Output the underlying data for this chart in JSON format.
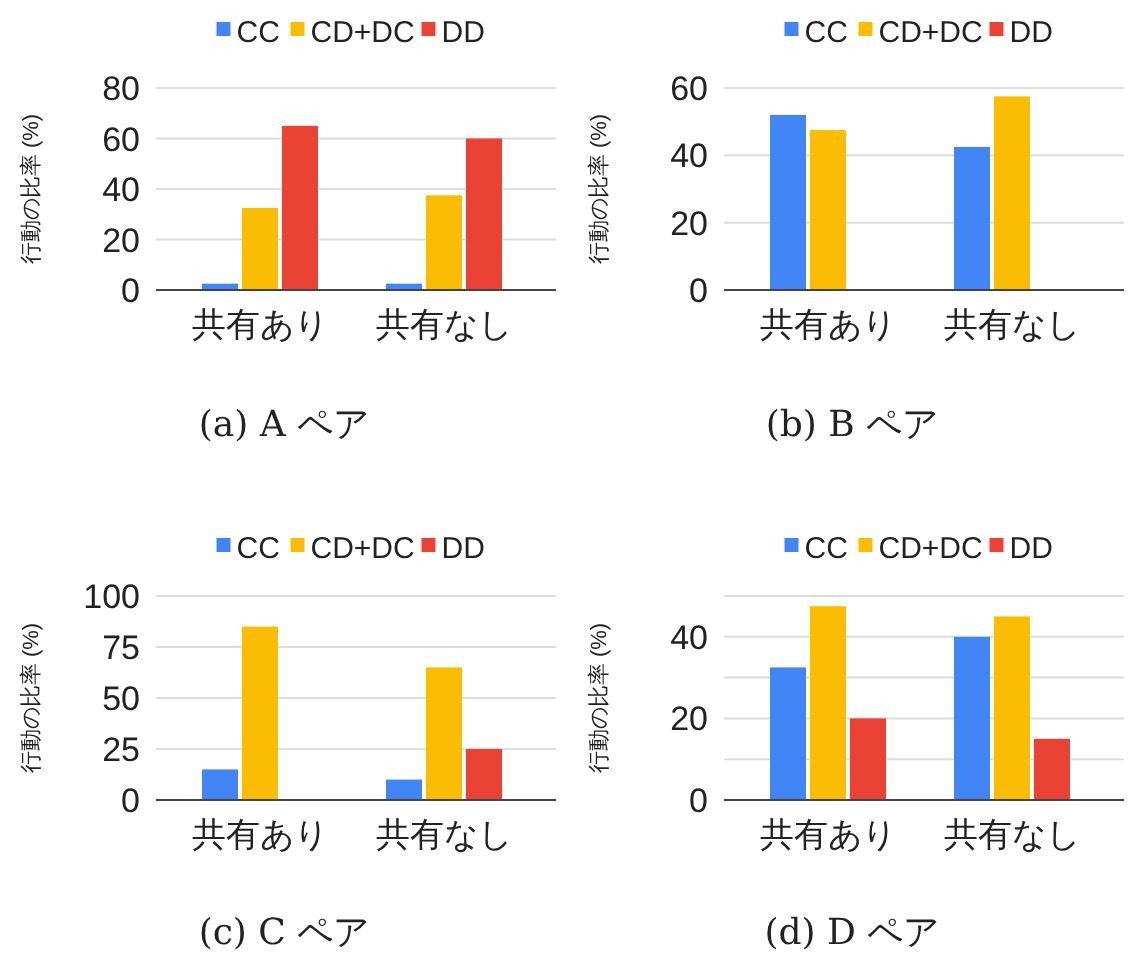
{
  "chart_data": [
    {
      "type": "bar",
      "ylabel": "行動の比率 (%)",
      "categories": [
        "共有あり",
        "共有なし"
      ],
      "series": [
        {
          "name": "CC",
          "color": "#4285f4",
          "values": [
            2.5,
            2.5
          ]
        },
        {
          "name": "CD+DC",
          "color": "#fbbc04",
          "values": [
            32.5,
            37.5
          ]
        },
        {
          "name": "DD",
          "color": "#ea4335",
          "values": [
            65,
            60
          ]
        }
      ],
      "ylim": [
        0,
        80
      ],
      "yticks": [
        0,
        20,
        40,
        60,
        80
      ],
      "grid": "y",
      "legend": "top",
      "annotations": [
        "(a) A ペア"
      ]
    },
    {
      "type": "bar",
      "ylabel": "行動の比率 (%)",
      "categories": [
        "共有あり",
        "共有なし"
      ],
      "series": [
        {
          "name": "CC",
          "color": "#4285f4",
          "values": [
            52,
            42.5
          ]
        },
        {
          "name": "CD+DC",
          "color": "#fbbc04",
          "values": [
            47.5,
            57.5
          ]
        },
        {
          "name": "DD",
          "color": "#ea4335",
          "values": [
            null,
            null
          ]
        }
      ],
      "ylim": [
        0,
        60
      ],
      "yticks": [
        0,
        20,
        40,
        60
      ],
      "grid": "y",
      "legend": "top",
      "annotations": [
        "(b) B ペア"
      ]
    },
    {
      "type": "bar",
      "ylabel": "行動の比率 (%)",
      "categories": [
        "共有あり",
        "共有なし"
      ],
      "series": [
        {
          "name": "CC",
          "color": "#4285f4",
          "values": [
            15,
            10
          ]
        },
        {
          "name": "CD+DC",
          "color": "#fbbc04",
          "values": [
            85,
            65
          ]
        },
        {
          "name": "DD",
          "color": "#ea4335",
          "values": [
            null,
            25
          ]
        }
      ],
      "ylim": [
        0,
        100
      ],
      "yticks": [
        0,
        25,
        50,
        75,
        100
      ],
      "grid": "y",
      "legend": "top",
      "annotations": [
        "(c) C ペア"
      ]
    },
    {
      "type": "bar",
      "ylabel": "行動の比率 (%)",
      "categories": [
        "共有あり",
        "共有なし"
      ],
      "series": [
        {
          "name": "CC",
          "color": "#4285f4",
          "values": [
            32.5,
            40
          ]
        },
        {
          "name": "CD+DC",
          "color": "#fbbc04",
          "values": [
            47.5,
            45
          ]
        },
        {
          "name": "DD",
          "color": "#ea4335",
          "values": [
            20,
            15
          ]
        }
      ],
      "ylim": [
        0,
        50
      ],
      "yticks": [
        0,
        {
          "value": 10,
          "label": null
        },
        20,
        {
          "value": 30,
          "label": null
        },
        40,
        {
          "value": 50,
          "label": null
        }
      ],
      "grid": "y",
      "legend": "top",
      "annotations": [
        "(d) D ペア"
      ]
    }
  ]
}
